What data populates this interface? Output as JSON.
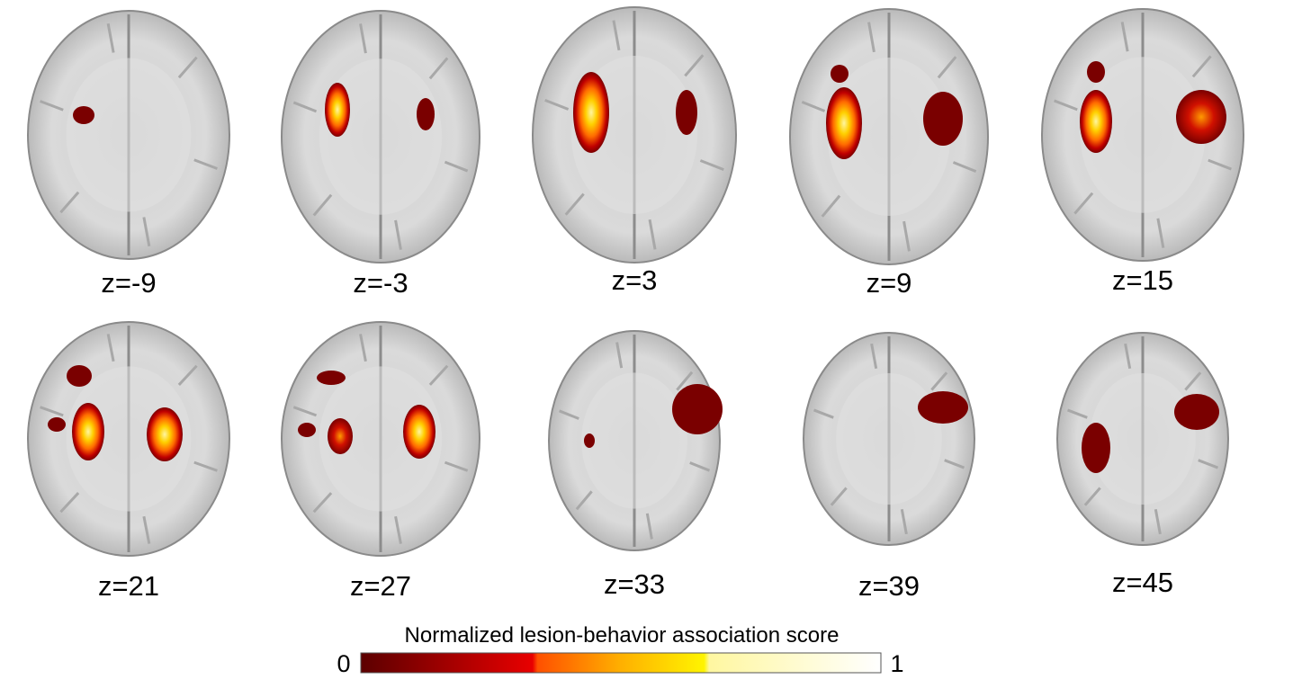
{
  "slices": [
    {
      "label": "z=-9"
    },
    {
      "label": "z=-3"
    },
    {
      "label": "z=3"
    },
    {
      "label": "z=9"
    },
    {
      "label": "z=15"
    },
    {
      "label": "z=21"
    },
    {
      "label": "z=27"
    },
    {
      "label": "z=33"
    },
    {
      "label": "z=39"
    },
    {
      "label": "z=45"
    }
  ],
  "colorbar": {
    "title": "Normalized lesion-behavior association score",
    "min_label": "0",
    "max_label": "1",
    "colors": [
      "#5c0000",
      "#b30000",
      "#e60000",
      "#ff5a00",
      "#ffb000",
      "#fff200",
      "#fffbb0",
      "#ffffff"
    ]
  },
  "colors": {
    "brain_outer": "#9a9a9a",
    "brain_inner": "#d6d6d6",
    "brain_mid": "#bcbcbc",
    "lesion_low": "#7a0000",
    "lesion_mid": "#e02000",
    "lesion_high": "#ffd400"
  }
}
